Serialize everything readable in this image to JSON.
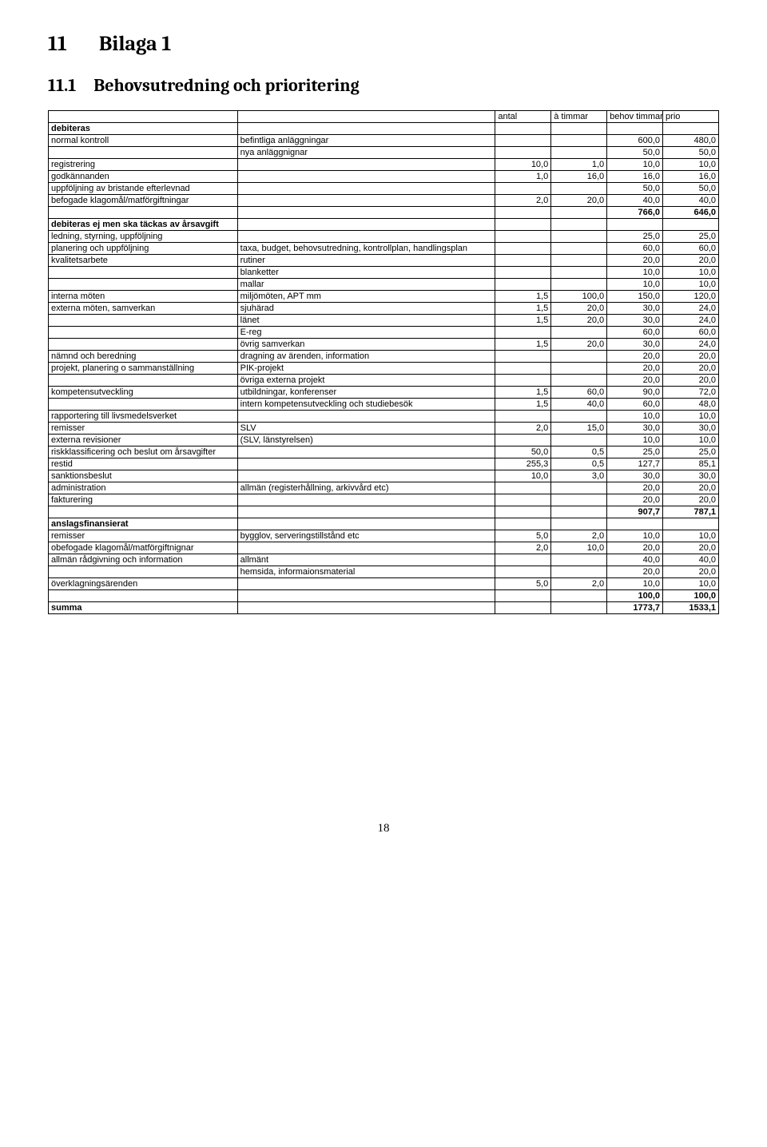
{
  "heading1": {
    "num": "11",
    "text": "Bilaga 1"
  },
  "heading2": {
    "num": "11.1",
    "text": "Behovsutredning och prioritering"
  },
  "columns": [
    "",
    "",
    "antal",
    "à timmar",
    "behov timmar",
    "prio"
  ],
  "rows": [
    {
      "a": "debiteras",
      "b": "",
      "aBold": true
    },
    {
      "a": "normal kontroll",
      "b": "befintliga anläggningar",
      "e": "600,0",
      "f": "480,0"
    },
    {
      "a": "",
      "b": "nya anläggnignar",
      "e": "50,0",
      "f": "50,0"
    },
    {
      "a": "registrering",
      "b": "",
      "c": "10,0",
      "d": "1,0",
      "e": "10,0",
      "f": "10,0"
    },
    {
      "a": "godkännanden",
      "b": "",
      "c": "1,0",
      "d": "16,0",
      "e": "16,0",
      "f": "16,0"
    },
    {
      "a": "uppföljning av bristande efterlevnad",
      "b": "",
      "e": "50,0",
      "f": "50,0"
    },
    {
      "a": "befogade klagomål/matförgiftningar",
      "b": "",
      "c": "2,0",
      "d": "20,0",
      "e": "40,0",
      "f": "40,0"
    },
    {
      "a": "",
      "b": "",
      "e": "766,0",
      "f": "646,0",
      "eBold": true,
      "fBold": true
    },
    {
      "a": "debiteras ej men ska täckas av årsavgift",
      "b": "",
      "aBold": true
    },
    {
      "a": "ledning, styrning, uppföljning",
      "b": "",
      "e": "25,0",
      "f": "25,0"
    },
    {
      "a": "planering och uppföljning",
      "b": "taxa, budget, behovsutredning, kontrollplan, handlingsplan",
      "e": "60,0",
      "f": "60,0"
    },
    {
      "a": "kvalitetsarbete",
      "b": "rutiner",
      "e": "20,0",
      "f": "20,0"
    },
    {
      "a": "",
      "b": "blanketter",
      "e": "10,0",
      "f": "10,0"
    },
    {
      "a": "",
      "b": "mallar",
      "e": "10,0",
      "f": "10,0"
    },
    {
      "a": "interna möten",
      "b": "miljömöten, APT mm",
      "c": "1,5",
      "d": "100,0",
      "e": "150,0",
      "f": "120,0"
    },
    {
      "a": "externa möten, samverkan",
      "b": "sjuhärad",
      "c": "1,5",
      "d": "20,0",
      "e": "30,0",
      "f": "24,0"
    },
    {
      "a": "",
      "b": "länet",
      "c": "1,5",
      "d": "20,0",
      "e": "30,0",
      "f": "24,0"
    },
    {
      "a": "",
      "b": "E-reg",
      "e": "60,0",
      "f": "60,0"
    },
    {
      "a": "",
      "b": "övrig samverkan",
      "c": "1,5",
      "d": "20,0",
      "e": "30,0",
      "f": "24,0"
    },
    {
      "a": "nämnd och beredning",
      "b": "dragning av ärenden, information",
      "e": "20,0",
      "f": "20,0"
    },
    {
      "a": "projekt, planering o sammanställning",
      "b": "PIK-projekt",
      "e": "20,0",
      "f": "20,0"
    },
    {
      "a": "",
      "b": "övriga externa projekt",
      "e": "20,0",
      "f": "20,0"
    },
    {
      "a": "kompetensutveckling",
      "b": "utbildningar, konferenser",
      "c": "1,5",
      "d": "60,0",
      "e": "90,0",
      "f": "72,0"
    },
    {
      "a": "",
      "b": "intern kompetensutveckling och studiebesök",
      "c": "1,5",
      "d": "40,0",
      "e": "60,0",
      "f": "48,0"
    },
    {
      "a": "rapportering till livsmedelsverket",
      "b": "",
      "e": "10,0",
      "f": "10,0"
    },
    {
      "a": "remisser",
      "b": "SLV",
      "c": "2,0",
      "d": "15,0",
      "e": "30,0",
      "f": "30,0"
    },
    {
      "a": "externa revisioner",
      "b": "(SLV, länstyrelsen)",
      "e": "10,0",
      "f": "10,0"
    },
    {
      "a": "riskklassificering och beslut om årsavgifter",
      "b": "",
      "c": "50,0",
      "d": "0,5",
      "e": "25,0",
      "f": "25,0"
    },
    {
      "a": "restid",
      "b": "",
      "c": "255,3",
      "d": "0,5",
      "e": "127,7",
      "f": "85,1"
    },
    {
      "a": "sanktionsbeslut",
      "b": "",
      "c": "10,0",
      "d": "3,0",
      "e": "30,0",
      "f": "30,0"
    },
    {
      "a": "administration",
      "b": "allmän (registerhållning, arkivvård etc)",
      "e": "20,0",
      "f": "20,0"
    },
    {
      "a": "fakturering",
      "b": "",
      "e": "20,0",
      "f": "20,0"
    },
    {
      "a": "",
      "b": "",
      "e": "907,7",
      "f": "787,1",
      "eBold": true,
      "fBold": true
    },
    {
      "a": "anslagsfinansierat",
      "b": "",
      "aBold": true
    },
    {
      "a": "remisser",
      "b": "bygglov, serveringstillstånd etc",
      "c": "5,0",
      "d": "2,0",
      "e": "10,0",
      "f": "10,0"
    },
    {
      "a": "obefogade klagomål/matförgiftnignar",
      "b": "",
      "c": "2,0",
      "d": "10,0",
      "e": "20,0",
      "f": "20,0"
    },
    {
      "a": "allmän rådgivning och information",
      "b": "allmänt",
      "e": "40,0",
      "f": "40,0"
    },
    {
      "a": "",
      "b": "hemsida, informaionsmaterial",
      "e": "20,0",
      "f": "20,0"
    },
    {
      "a": "överklagningsärenden",
      "b": "",
      "c": "5,0",
      "d": "2,0",
      "e": "10,0",
      "f": "10,0"
    },
    {
      "a": "",
      "b": "",
      "e": "100,0",
      "f": "100,0",
      "eBold": true,
      "fBold": true
    },
    {
      "a": "summa",
      "b": "",
      "aBold": true,
      "e": "1773,7",
      "f": "1533,1",
      "eBold": true,
      "fBold": true
    }
  ],
  "pageNumber": "18"
}
